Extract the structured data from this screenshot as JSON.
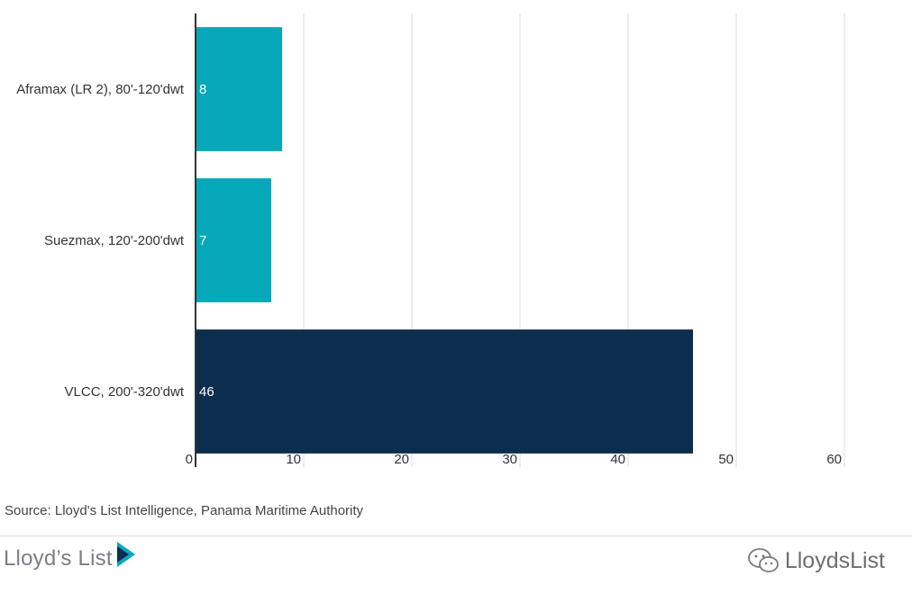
{
  "chart_data": {
    "type": "bar",
    "orientation": "horizontal",
    "categories": [
      "Aframax (LR 2), 80'-120'dwt",
      "Suezmax, 120'-200'dwt",
      "VLCC, 200'-320'dwt"
    ],
    "values": [
      8,
      7,
      46
    ],
    "data_labels": [
      "8",
      "7",
      "46"
    ],
    "bar_colors": [
      "#06a9b9",
      "#06a9b9",
      "#0b2d4e"
    ],
    "xlim": [
      0,
      60
    ],
    "x_ticks": [
      0,
      10,
      20,
      30,
      40,
      50,
      60
    ],
    "x_tick_labels": [
      "0",
      "10",
      "20",
      "30",
      "40",
      "50",
      "60"
    ],
    "grid": "vertical",
    "title": "",
    "xlabel": "",
    "ylabel": ""
  },
  "source_text": "Source: Lloyd's List Intelligence, Panama Maritime Authority",
  "brand": {
    "logo_text": "Lloyd’s List",
    "logo_icon": "play-triangle-icon",
    "accent_color": "#06a9b9",
    "dark_color": "#0b2d4e"
  },
  "watermark": {
    "text": "LloydsList",
    "icon": "wechat-icon"
  }
}
